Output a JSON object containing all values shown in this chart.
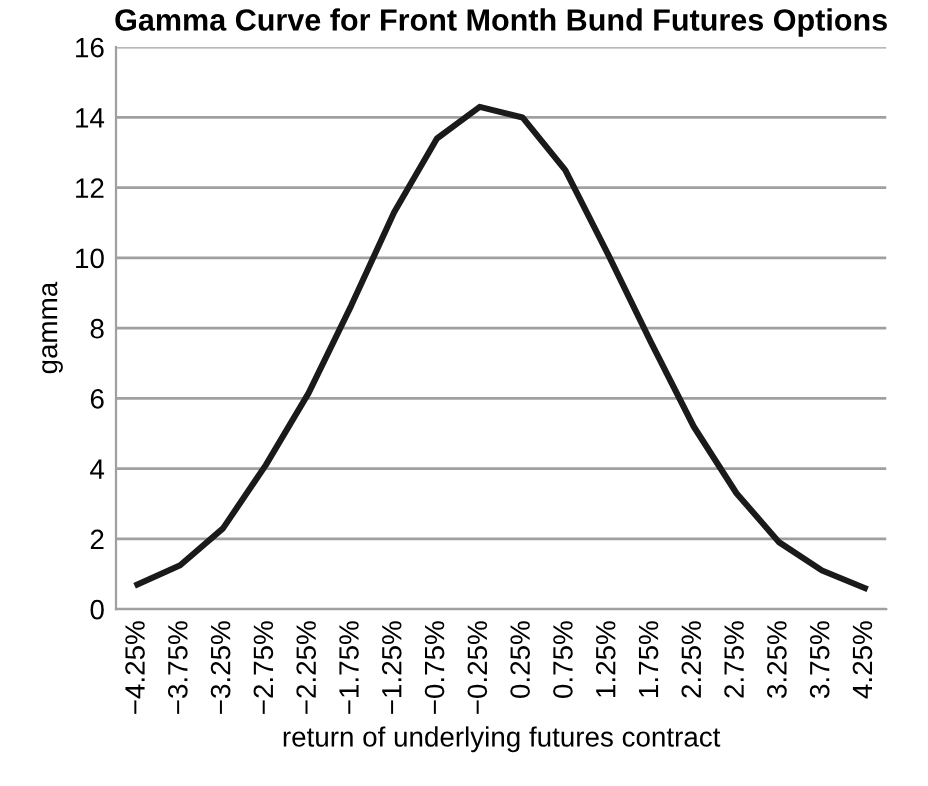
{
  "chart_data": {
    "type": "line",
    "title": "Gamma Curve for Front Month Bund Futures Options",
    "xlabel": "return of underlying futures contract",
    "ylabel": "gamma",
    "categories": [
      "−4.25%",
      "−3.75%",
      "−3.25%",
      "−2.75%",
      "−2.25%",
      "−1.75%",
      "−1.25%",
      "−0.75%",
      "−0.25%",
      "0.25%",
      "0.75%",
      "1.25%",
      "1.75%",
      "2.25%",
      "2.75%",
      "3.25%",
      "3.75%",
      "4.25%"
    ],
    "series": [
      {
        "color": "#1a1a1a",
        "values": [
          0.7,
          1.25,
          2.3,
          4.1,
          6.15,
          8.65,
          11.3,
          13.4,
          14.3,
          14.0,
          12.5,
          10.1,
          7.6,
          5.2,
          3.3,
          1.9,
          1.1,
          0.6
        ]
      }
    ],
    "ylim": [
      0,
      16
    ],
    "yticks": [
      0,
      2,
      4,
      6,
      8,
      10,
      12,
      14,
      16
    ],
    "grid": "y",
    "marker": "none",
    "line_style": "solid"
  }
}
